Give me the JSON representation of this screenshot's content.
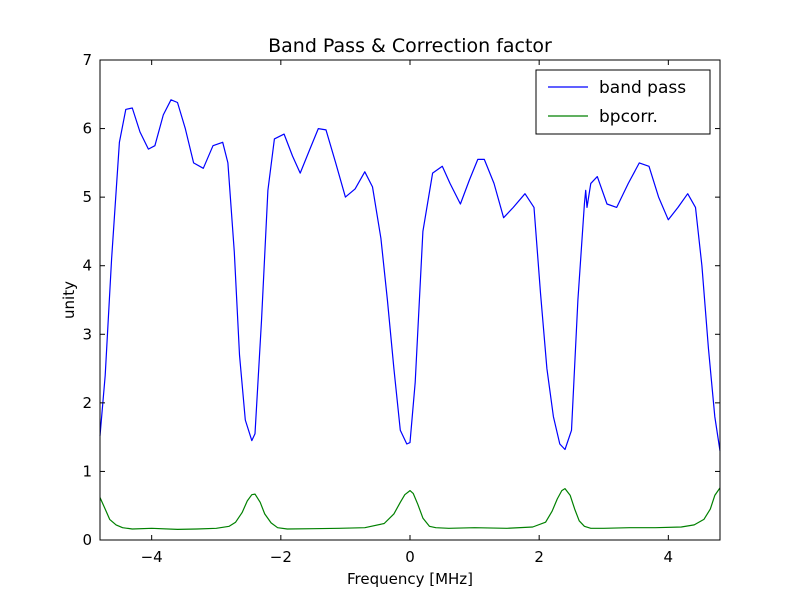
{
  "chart_data": {
    "type": "line",
    "title": "Band Pass & Correction factor",
    "xlabel": "Frequency  [MHz]",
    "ylabel": "unity",
    "xlim": [
      -4.8,
      4.8
    ],
    "ylim": [
      0,
      7
    ],
    "xticks": [
      -4,
      -2,
      0,
      2,
      4
    ],
    "xtick_labels": [
      "−4",
      "−2",
      "0",
      "2",
      "4"
    ],
    "yticks": [
      0,
      1,
      2,
      3,
      4,
      5,
      6,
      7
    ],
    "ytick_labels": [
      "0",
      "1",
      "2",
      "3",
      "4",
      "5",
      "6",
      "7"
    ],
    "grid": false,
    "legend_position": "top-right",
    "series": [
      {
        "name": "band pass",
        "color": "#0000ff",
        "x": [
          -4.8,
          -4.72,
          -4.62,
          -4.5,
          -4.4,
          -4.3,
          -4.18,
          -4.05,
          -3.95,
          -3.82,
          -3.7,
          -3.6,
          -3.48,
          -3.35,
          -3.2,
          -3.05,
          -2.9,
          -2.82,
          -2.72,
          -2.64,
          -2.55,
          -2.45,
          -2.4,
          -2.3,
          -2.2,
          -2.1,
          -1.95,
          -1.82,
          -1.7,
          -1.55,
          -1.42,
          -1.3,
          -1.15,
          -1.0,
          -0.85,
          -0.7,
          -0.58,
          -0.45,
          -0.35,
          -0.25,
          -0.15,
          -0.05,
          0.0,
          0.08,
          0.2,
          0.35,
          0.5,
          0.62,
          0.78,
          0.92,
          1.05,
          1.15,
          1.3,
          1.45,
          1.6,
          1.78,
          1.92,
          2.02,
          2.12,
          2.22,
          2.32,
          2.4,
          2.5,
          2.6,
          2.7,
          2.72,
          2.74,
          2.8,
          2.9,
          3.05,
          3.2,
          3.38,
          3.55,
          3.7,
          3.85,
          4.0,
          4.15,
          4.3,
          4.42,
          4.52,
          4.62,
          4.72,
          4.8
        ],
        "y": [
          1.52,
          2.4,
          4.1,
          5.8,
          6.28,
          6.3,
          5.95,
          5.7,
          5.75,
          6.2,
          6.42,
          6.38,
          6.0,
          5.5,
          5.42,
          5.75,
          5.8,
          5.5,
          4.2,
          2.7,
          1.75,
          1.45,
          1.55,
          3.2,
          5.1,
          5.85,
          5.92,
          5.6,
          5.35,
          5.7,
          6.0,
          5.98,
          5.5,
          5.0,
          5.12,
          5.37,
          5.15,
          4.4,
          3.5,
          2.5,
          1.6,
          1.4,
          1.42,
          2.3,
          4.5,
          5.35,
          5.45,
          5.2,
          4.9,
          5.25,
          5.55,
          5.55,
          5.2,
          4.7,
          4.85,
          5.05,
          4.85,
          3.6,
          2.5,
          1.8,
          1.4,
          1.32,
          1.6,
          3.5,
          4.9,
          5.1,
          4.85,
          5.2,
          5.3,
          4.9,
          4.85,
          5.2,
          5.5,
          5.45,
          5.0,
          4.67,
          4.85,
          5.05,
          4.85,
          4.0,
          2.8,
          1.8,
          1.3
        ]
      },
      {
        "name": "bpcorr.",
        "color": "#008000",
        "x": [
          -4.8,
          -4.72,
          -4.65,
          -4.55,
          -4.45,
          -4.3,
          -4.0,
          -3.6,
          -3.3,
          -3.0,
          -2.8,
          -2.7,
          -2.6,
          -2.52,
          -2.45,
          -2.4,
          -2.32,
          -2.25,
          -2.15,
          -2.05,
          -1.9,
          -1.5,
          -1.1,
          -0.7,
          -0.4,
          -0.25,
          -0.15,
          -0.08,
          0.0,
          0.05,
          0.12,
          0.2,
          0.3,
          0.4,
          0.6,
          1.0,
          1.5,
          1.9,
          2.1,
          2.2,
          2.28,
          2.35,
          2.4,
          2.48,
          2.55,
          2.62,
          2.7,
          2.8,
          3.0,
          3.4,
          3.8,
          4.2,
          4.4,
          4.55,
          4.65,
          4.72,
          4.8
        ],
        "y": [
          0.62,
          0.45,
          0.3,
          0.22,
          0.18,
          0.16,
          0.17,
          0.155,
          0.16,
          0.17,
          0.2,
          0.26,
          0.4,
          0.57,
          0.66,
          0.67,
          0.55,
          0.38,
          0.25,
          0.18,
          0.16,
          0.165,
          0.17,
          0.18,
          0.24,
          0.38,
          0.55,
          0.66,
          0.72,
          0.68,
          0.52,
          0.32,
          0.2,
          0.18,
          0.17,
          0.18,
          0.17,
          0.19,
          0.26,
          0.42,
          0.6,
          0.72,
          0.75,
          0.65,
          0.45,
          0.28,
          0.2,
          0.17,
          0.17,
          0.18,
          0.18,
          0.19,
          0.22,
          0.3,
          0.45,
          0.65,
          0.76
        ]
      }
    ]
  }
}
